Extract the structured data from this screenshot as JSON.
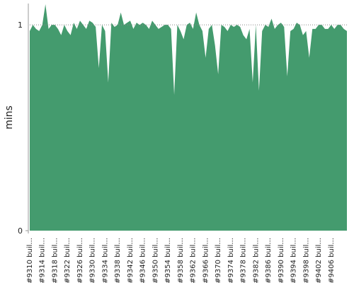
{
  "chart_data": {
    "type": "area",
    "y_label": "mins",
    "categories": [
      "#9310 buil...",
      null,
      null,
      null,
      "#9314 buil...",
      null,
      null,
      null,
      "#9318 buil...",
      null,
      null,
      null,
      "#9322 buil...",
      null,
      null,
      null,
      "#9326 buil...",
      null,
      null,
      null,
      "#9330 buil...",
      null,
      null,
      null,
      "#9334 buil...",
      null,
      null,
      null,
      "#9338 buil...",
      null,
      null,
      null,
      "#9342 buil...",
      null,
      null,
      null,
      "#9346 buil...",
      null,
      null,
      null,
      "#9350 buil...",
      null,
      null,
      null,
      "#9354 buil...",
      null,
      null,
      null,
      "#9358 buil...",
      null,
      null,
      null,
      "#9362 buil...",
      null,
      null,
      null,
      "#9366 buil...",
      null,
      null,
      null,
      "#9370 buil...",
      null,
      null,
      null,
      "#9374 buil...",
      null,
      null,
      null,
      "#9378 buil...",
      null,
      null,
      null,
      "#9382 buil...",
      null,
      null,
      null,
      "#9386 buil...",
      null,
      null,
      null,
      "#9390 buil...",
      null,
      null,
      null,
      "#9394 buil...",
      null,
      null,
      null,
      "#9398 buil...",
      null,
      null,
      null,
      "#9402 buil...",
      null,
      null,
      null,
      "#9406 buil...",
      null,
      null,
      null,
      null,
      null
    ],
    "values": [
      0.97,
      1.0,
      0.98,
      0.97,
      1.0,
      1.1,
      0.98,
      1.0,
      1.0,
      0.98,
      0.95,
      1.0,
      0.97,
      0.95,
      1.01,
      0.98,
      1.02,
      1.0,
      0.98,
      1.02,
      1.01,
      0.99,
      0.79,
      1.0,
      0.97,
      0.72,
      1.01,
      0.99,
      1.0,
      1.06,
      1.0,
      1.01,
      1.02,
      0.98,
      1.01,
      1.0,
      1.01,
      1.0,
      0.98,
      1.02,
      1.0,
      0.98,
      0.99,
      1.0,
      1.0,
      0.98,
      0.66,
      1.0,
      0.97,
      0.93,
      1.0,
      1.01,
      0.98,
      1.06,
      1.0,
      0.97,
      0.84,
      0.98,
      1.0,
      0.9,
      0.76,
      1.0,
      0.99,
      0.97,
      1.0,
      0.99,
      1.0,
      0.99,
      0.95,
      0.93,
      0.98,
      0.72,
      1.0,
      0.68,
      0.97,
      1.0,
      0.99,
      1.03,
      0.98,
      1.0,
      1.01,
      0.99,
      0.75,
      0.97,
      0.98,
      1.01,
      1.0,
      0.95,
      0.97,
      0.84,
      0.98,
      0.98,
      1.0,
      1.0,
      0.98,
      0.98,
      1.0,
      0.98,
      1.0,
      1.0,
      0.98,
      0.97
    ],
    "color": "#449b6e",
    "ylim": [
      0,
      1.1
    ],
    "yticks": [
      0,
      1
    ],
    "grid": true
  }
}
